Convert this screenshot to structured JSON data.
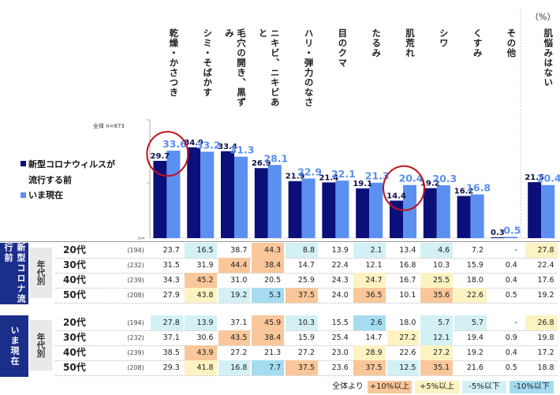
{
  "unit": "（%）",
  "chart_data": {
    "type": "bar",
    "base_label": "全体 n=873",
    "categories": [
      "乾燥・かさつき",
      "シミ・そばかす",
      "毛穴の開き、黒ずみ",
      "ニキビ、ニキビあと",
      "ハリ・弾力のなさ",
      "目のクマ",
      "たるみ",
      "肌荒れ",
      "シワ",
      "くすみ",
      "その他",
      "肌悩みはない"
    ],
    "series": [
      {
        "name": "新型コロナウィルスが流行する前",
        "color": "#0b0f7a",
        "values": [
          29.7,
          34.9,
          33.4,
          26.9,
          21.9,
          21.4,
          19.1,
          14.4,
          19.2,
          16.2,
          0.3,
          21.5
        ]
      },
      {
        "name": "いま現在",
        "color": "#5b8ff0",
        "values": [
          33.6,
          33.2,
          31.3,
          28.1,
          22.9,
          22.1,
          21.3,
          20.4,
          20.3,
          16.8,
          0.5,
          20.4
        ]
      }
    ],
    "ylim": [
      0,
      40
    ],
    "highlight_circles": [
      "乾燥・かさつき",
      "肌荒れ"
    ]
  },
  "table": {
    "sections": [
      {
        "label": "新型コロナ流行前",
        "sublabel": "年代別",
        "rows": [
          {
            "age": "20代",
            "n": "(194)",
            "cells": [
              "23.7",
              "16.5",
              "38.7",
              "44.3",
              "8.8",
              "13.9",
              "2.1",
              "13.4",
              "4.6",
              "7.2",
              "-",
              "27.8"
            ],
            "shade": [
              "",
              "c",
              "",
              "o",
              "c",
              "",
              "c",
              "",
              "c",
              "",
              "",
              "y"
            ]
          },
          {
            "age": "30代",
            "n": "(232)",
            "cells": [
              "31.5",
              "31.9",
              "44.4",
              "38.4",
              "14.7",
              "22.4",
              "12.1",
              "16.8",
              "10.3",
              "15.9",
              "0.4",
              "22.4"
            ],
            "shade": [
              "",
              "",
              "o",
              "o",
              "",
              "",
              "",
              "",
              "",
              "",
              "",
              ""
            ]
          },
          {
            "age": "40代",
            "n": "(239)",
            "cells": [
              "34.3",
              "45.2",
              "31.0",
              "20.5",
              "25.9",
              "24.3",
              "24.7",
              "16.7",
              "25.5",
              "18.0",
              "0.4",
              "17.6"
            ],
            "shade": [
              "",
              "o",
              "",
              "",
              "",
              "",
              "y",
              "",
              "y",
              "",
              "",
              ""
            ]
          },
          {
            "age": "50代",
            "n": "(208)",
            "cells": [
              "27.9",
              "43.8",
              "19.2",
              "5.3",
              "37.5",
              "24.0",
              "36.5",
              "10.1",
              "35.6",
              "22.6",
              "0.5",
              "19.2"
            ],
            "shade": [
              "",
              "y",
              "c",
              "b",
              "o",
              "",
              "o",
              "",
              "o",
              "y",
              "",
              ""
            ]
          }
        ]
      },
      {
        "label": "いま現在",
        "sublabel": "年代別",
        "rows": [
          {
            "age": "20代",
            "n": "(194)",
            "cells": [
              "27.8",
              "13.9",
              "37.1",
              "45.9",
              "10.3",
              "15.5",
              "2.6",
              "18.0",
              "5.7",
              "5.7",
              "-",
              "26.8"
            ],
            "shade": [
              "c",
              "c",
              "",
              "o",
              "c",
              "",
              "b",
              "",
              "c",
              "c",
              "",
              "y"
            ]
          },
          {
            "age": "30代",
            "n": "(232)",
            "cells": [
              "37.1",
              "30.6",
              "43.5",
              "38.4",
              "15.9",
              "25.4",
              "14.7",
              "27.2",
              "12.1",
              "19.4",
              "0.9",
              "19.8"
            ],
            "shade": [
              "",
              "",
              "o",
              "o",
              "",
              "",
              "",
              "y",
              "c",
              "",
              "",
              ""
            ]
          },
          {
            "age": "40代",
            "n": "(239)",
            "cells": [
              "38.5",
              "43.9",
              "27.2",
              "21.3",
              "27.2",
              "23.0",
              "28.9",
              "22.6",
              "27.2",
              "19.2",
              "0.4",
              "17.2"
            ],
            "shade": [
              "",
              "o",
              "",
              "",
              "",
              "",
              "y",
              "",
              "y",
              "",
              "",
              ""
            ]
          },
          {
            "age": "50代",
            "n": "(208)",
            "cells": [
              "29.3",
              "41.8",
              "16.8",
              "7.7",
              "37.5",
              "23.6",
              "37.5",
              "12.5",
              "35.1",
              "21.6",
              "0.5",
              "18.8"
            ],
            "shade": [
              "",
              "y",
              "c",
              "b",
              "o",
              "",
              "o",
              "c",
              "o",
              "",
              "",
              ""
            ]
          }
        ]
      }
    ]
  },
  "legend": {
    "prefix": "全体より",
    "items": [
      {
        "label": "+10%以上",
        "color": "#f9c79a"
      },
      {
        "label": "+5%以上",
        "color": "#fdf3c2"
      },
      {
        "label": "-5%以下",
        "color": "#d3f1f5"
      },
      {
        "label": "-10%以下",
        "color": "#a5dcf0"
      }
    ]
  },
  "colors": {
    "header_blue": "#1b2e8a",
    "circle": "#c0131c"
  }
}
